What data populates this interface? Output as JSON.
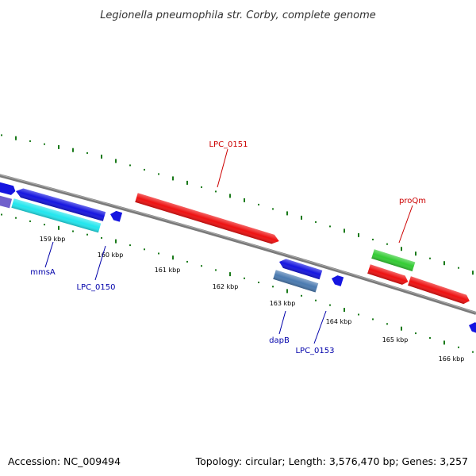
{
  "title": "Legionella pneumophila str. Corby, complete genome",
  "footer": {
    "accession": "Accession: NC_009494",
    "summary": "Topology: circular; Length: 3,576,470 bp; Genes: 3,257"
  },
  "colors": {
    "backbone": "#7a7a7a",
    "tick": "#1a7a1a",
    "label_forward": "#cc0000",
    "label_reverse": "#0000aa"
  },
  "ticks": [
    {
      "label": "159 kbp",
      "kbp": 159
    },
    {
      "label": "160 kbp",
      "kbp": 160
    },
    {
      "label": "161 kbp",
      "kbp": 161
    },
    {
      "label": "162 kbp",
      "kbp": 162
    },
    {
      "label": "163 kbp",
      "kbp": 163
    },
    {
      "label": "164 kbp",
      "kbp": 164
    },
    {
      "label": "165 kbp",
      "kbp": 165
    },
    {
      "label": "166 kbp",
      "kbp": 166
    }
  ],
  "gene_labels": [
    {
      "text": "LPC_0151",
      "strand": "forward"
    },
    {
      "text": "proQm",
      "strand": "forward"
    },
    {
      "text": "mmsA",
      "strand": "reverse"
    },
    {
      "text": "LPC_0150",
      "strand": "reverse"
    },
    {
      "text": "dapB",
      "strand": "reverse"
    },
    {
      "text": "LPC_0153",
      "strand": "reverse"
    }
  ],
  "features": [
    {
      "name": "blue-gene-left-edge",
      "color": "#1515e0"
    },
    {
      "name": "blue-gene-mmsA",
      "color": "#1515e0"
    },
    {
      "name": "purple-gene-left-edge",
      "color": "#7060cc"
    },
    {
      "name": "cyan-gene-mmsA",
      "color": "#22e6ee"
    },
    {
      "name": "blue-gene-LPC_0150",
      "color": "#1515e0"
    },
    {
      "name": "red-gene-LPC_0151",
      "color": "#ee1111"
    },
    {
      "name": "blue-gene-dapB",
      "color": "#1515e0"
    },
    {
      "name": "steelblue-gene-dapB",
      "color": "#4a7ab0"
    },
    {
      "name": "blue-gene-LPC_0153",
      "color": "#1515e0"
    },
    {
      "name": "green-gene-proQm",
      "color": "#33cc33"
    },
    {
      "name": "red-gene-proQm-a",
      "color": "#ee1111"
    },
    {
      "name": "red-gene-proQm-b",
      "color": "#ee1111"
    },
    {
      "name": "blue-gene-right-edge",
      "color": "#1515e0"
    }
  ]
}
